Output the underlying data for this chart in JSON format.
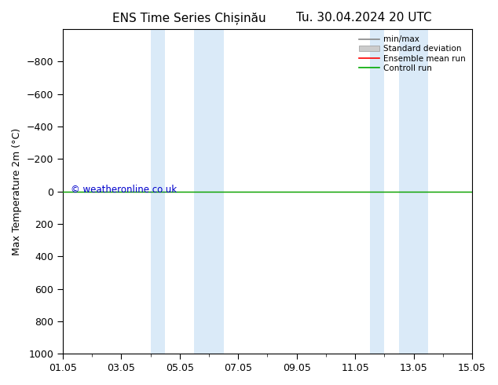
{
  "title_left": "ENS Time Series Chișinău",
  "title_right": "Tu. 30.04.2024 20 UTC",
  "ylabel": "Max Temperature 2m (°C)",
  "ylim": [
    -1000,
    1000
  ],
  "yticks": [
    -800,
    -600,
    -400,
    -200,
    0,
    200,
    400,
    600,
    800,
    1000
  ],
  "xtick_labels": [
    "01.05",
    "03.05",
    "05.05",
    "07.05",
    "09.05",
    "11.05",
    "13.05",
    "15.05"
  ],
  "xtick_positions": [
    0,
    2,
    4,
    6,
    8,
    10,
    12,
    14
  ],
  "shaded_bands": [
    {
      "xstart": 3.0,
      "xend": 3.5
    },
    {
      "xstart": 4.5,
      "xend": 5.5
    },
    {
      "xstart": 10.5,
      "xend": 11.0
    },
    {
      "xstart": 11.5,
      "xend": 12.5
    }
  ],
  "shade_color": "#daeaf8",
  "green_line_y": 0,
  "red_line_y": 0,
  "green_line_color": "#00aa00",
  "red_line_color": "#ff0000",
  "watermark": "© weatheronline.co.uk",
  "watermark_color": "#0000cc",
  "legend_items": [
    "min/max",
    "Standard deviation",
    "Ensemble mean run",
    "Controll run"
  ],
  "legend_line_color": "#888888",
  "legend_patch_color": "#cccccc",
  "legend_red": "#ff0000",
  "legend_green": "#00aa00",
  "bg_color": "#ffffff",
  "plot_bg_color": "#ffffff",
  "font_size": 9,
  "title_font_size": 11
}
